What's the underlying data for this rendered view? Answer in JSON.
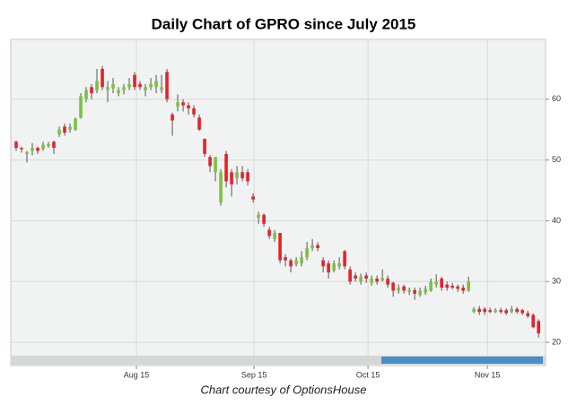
{
  "chart_data": {
    "type": "candlestick",
    "title": "Daily Chart of GPRO since July 2015",
    "footer": "Chart courtesy of OptionsHouse",
    "up_color": "#7cc142",
    "down_color": "#e8202a",
    "grid": true,
    "ylim": [
      18.1,
      69.7
    ],
    "yticks": [
      20,
      30,
      40,
      50,
      60
    ],
    "xlim": [
      -1,
      98.3
    ],
    "xticks": [
      {
        "value": 22.33,
        "label": "Aug 15"
      },
      {
        "value": 44.17,
        "label": "Sep 15"
      },
      {
        "value": 65.33,
        "label": "Oct 15"
      },
      {
        "value": 87.5,
        "label": "Nov 15"
      }
    ],
    "open": [
      53,
      52,
      51,
      51.5,
      52,
      51.8,
      52.3,
      53,
      54.2,
      55.5,
      55,
      55,
      57,
      60,
      62,
      61.5,
      65,
      61.5,
      61.8,
      61,
      61.5,
      62,
      64,
      62.5,
      61.5,
      62,
      62,
      61.5,
      64.5,
      57.5,
      58.8,
      59.5,
      59,
      58.5,
      57,
      53.5,
      50.5,
      48,
      43,
      51,
      48,
      47,
      48,
      48,
      44,
      40.5,
      41,
      38.5,
      37,
      38,
      34,
      33.5,
      32.8,
      33,
      34,
      35.5,
      36,
      33.5,
      33,
      31.8,
      32.5,
      35,
      32,
      31,
      30,
      31,
      29.8,
      30.5,
      30.2,
      30.5,
      29.8,
      28.5,
      29.2,
      28.3,
      28.6,
      27.8,
      28.2,
      28.5,
      29.5,
      30.5,
      29.5,
      29.3,
      29.2,
      29,
      28.5,
      25,
      25.5,
      25.5,
      25.3,
      25,
      25.3,
      25.3,
      25,
      25.5,
      25.3,
      24.8,
      24.5,
      23.5
    ],
    "high": [
      53.2,
      52.2,
      51.5,
      52.8,
      52.2,
      53,
      53,
      53.2,
      55.5,
      56,
      56,
      57,
      61,
      62,
      62.5,
      65,
      65.5,
      63,
      63.5,
      62,
      62.5,
      63.5,
      64.5,
      63,
      62.5,
      63.5,
      64,
      64,
      65,
      57.8,
      60.8,
      60,
      59.5,
      59,
      57.5,
      53.5,
      50.8,
      50.5,
      48.5,
      51.5,
      48.5,
      49,
      49,
      48.5,
      44.5,
      41.5,
      41.2,
      39,
      38.5,
      38,
      34.5,
      33.8,
      34,
      35,
      36.5,
      37,
      36.5,
      34,
      33.5,
      33.5,
      34,
      35.2,
      32.5,
      31.5,
      31.3,
      31.5,
      31,
      31,
      32,
      31,
      30,
      29.5,
      29.5,
      29,
      29,
      29,
      29.3,
      30.5,
      31.2,
      30.8,
      30,
      29.8,
      29.5,
      29.5,
      30.8,
      25.8,
      26,
      25.8,
      25.7,
      25.6,
      25.7,
      25.6,
      26,
      25.8,
      25.5,
      25.2,
      24.8,
      23.8
    ],
    "low": [
      51.5,
      51.2,
      49.6,
      50.8,
      51,
      51.5,
      52,
      51,
      53.8,
      54,
      54.5,
      54.8,
      56.8,
      59.5,
      60,
      61,
      61.5,
      59.5,
      61,
      60.5,
      60.8,
      61.5,
      61.5,
      61.5,
      60.5,
      61.5,
      61,
      61,
      59.5,
      54,
      58,
      58,
      57.5,
      57,
      54.8,
      50.5,
      48,
      46.5,
      42.5,
      45.5,
      44,
      46,
      46.5,
      45.8,
      43,
      39.5,
      39,
      37,
      36.5,
      33,
      32.5,
      31.5,
      32.5,
      32.5,
      33.5,
      35,
      35,
      31.5,
      30.5,
      31.5,
      32,
      32,
      29.5,
      30,
      29.5,
      29.8,
      29.3,
      29.5,
      30,
      29,
      27.5,
      28,
      28,
      27.8,
      27,
      27.5,
      27.8,
      28.3,
      29,
      28.5,
      28.5,
      28.7,
      28.3,
      28,
      28.3,
      24.8,
      24.5,
      24.5,
      24.8,
      24.8,
      24.7,
      24.5,
      24.8,
      24.7,
      24.5,
      24,
      22.3,
      20.8
    ],
    "close": [
      52,
      51.8,
      51.3,
      52,
      51.5,
      52.5,
      52.6,
      52,
      55,
      54.5,
      55.5,
      56.8,
      60.5,
      61.5,
      61,
      63,
      62,
      62,
      62.5,
      61.5,
      62,
      62.5,
      62,
      62,
      62,
      62.5,
      63,
      62,
      60,
      56.5,
      59.5,
      59,
      58.5,
      57.5,
      55,
      51,
      49,
      50.5,
      48,
      46.5,
      46,
      48,
      47,
      46.5,
      43.5,
      41,
      39.5,
      37.5,
      38,
      33.5,
      33.5,
      32.5,
      33.5,
      34,
      35.5,
      36,
      35.5,
      32.5,
      31.5,
      33,
      33,
      32.5,
      30,
      30.5,
      30.8,
      30.5,
      30.5,
      30,
      30.6,
      29.5,
      28.5,
      29,
      28.5,
      28.6,
      28,
      28.5,
      28.8,
      30,
      30,
      29,
      29,
      29,
      28.8,
      28.5,
      30,
      25.5,
      25,
      25,
      25,
      25.3,
      25,
      24.8,
      25.5,
      25,
      24.8,
      24.3,
      22.5,
      21.5
    ]
  }
}
